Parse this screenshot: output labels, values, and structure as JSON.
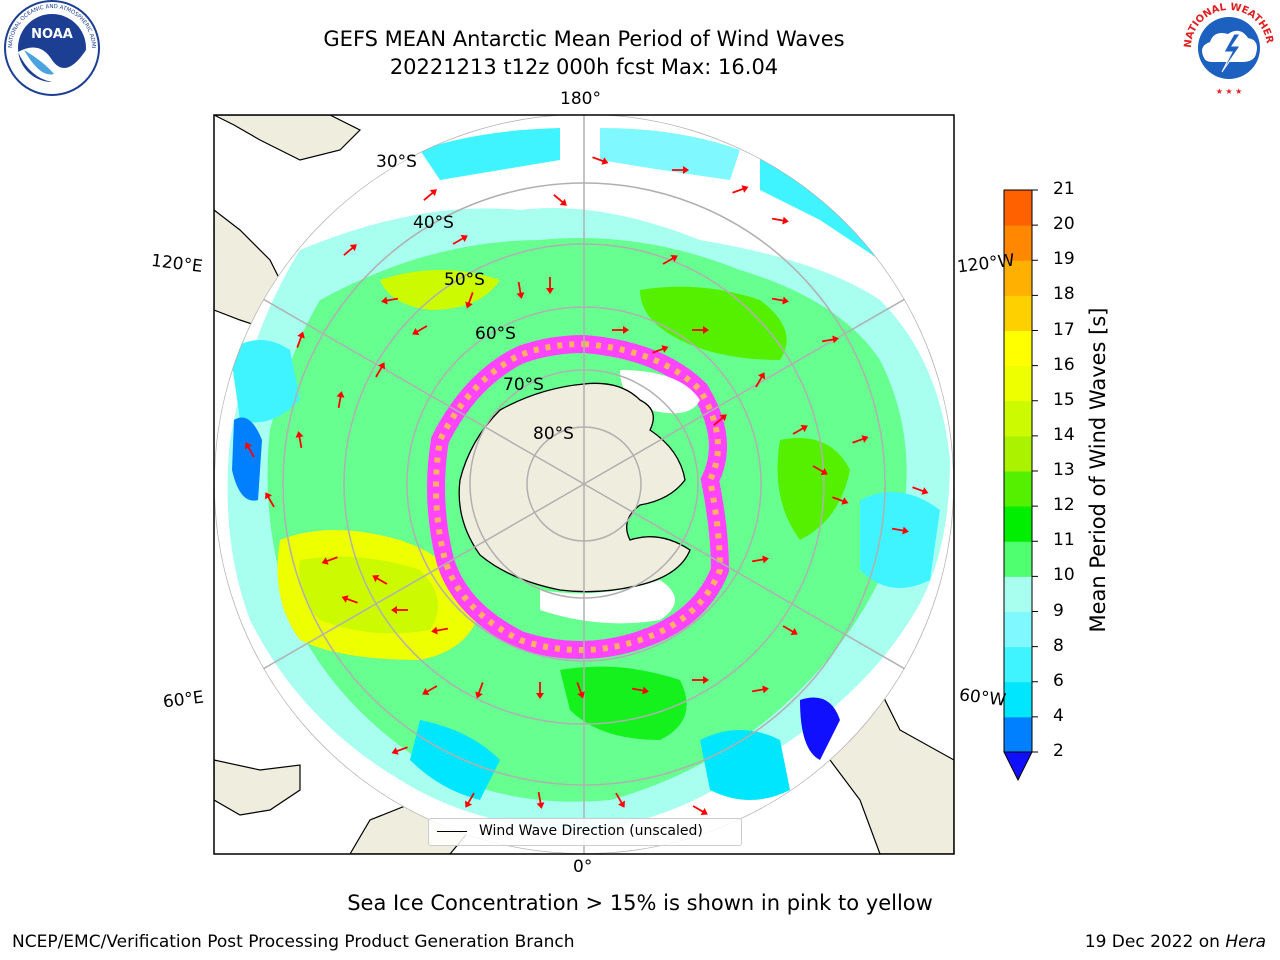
{
  "title": {
    "line1": "GEFS MEAN Antarctic Mean Period of Wind Waves",
    "line2": "20221213 t12z 000h fcst   Max: 16.04"
  },
  "logos": {
    "left": {
      "name": "NOAA",
      "text": "NOAA",
      "ring_text": "NATIONAL OCEANIC AND ATMOSPHERIC ADMINISTRATION · U.S. DEPARTMENT OF COMMERCE"
    },
    "right": {
      "name": "National Weather Service",
      "ring_text": "NATIONAL WEATHER SERVICE"
    }
  },
  "map": {
    "projection": "south-polar-stereographic",
    "longitude_labels": [
      "180°",
      "120°E",
      "120°W",
      "60°E",
      "60°W",
      "0°"
    ],
    "latitude_labels": [
      "30°S",
      "40°S",
      "50°S",
      "60°S",
      "70°S",
      "80°S"
    ],
    "legend": "Wind Wave Direction (unscaled)",
    "arrow_color": "#ff0000",
    "land_color": "#efedde",
    "sea_ice_colors": [
      "#ff44ff",
      "#ffb060",
      "#ffffff"
    ]
  },
  "colorbar": {
    "label": "Mean Period of Wind Waves [s]",
    "ticks": [
      "2",
      "4",
      "6",
      "8",
      "9",
      "10",
      "11",
      "12",
      "13",
      "14",
      "15",
      "16",
      "17",
      "18",
      "19",
      "20",
      "21"
    ],
    "colors": [
      "#0080ff",
      "#00e6ff",
      "#40f4ff",
      "#80f8ff",
      "#a8fff0",
      "#50ff70",
      "#00ee00",
      "#55f000",
      "#aaf200",
      "#ccfa00",
      "#eeff00",
      "#ffff00",
      "#ffd000",
      "#ffb000",
      "#ff8800",
      "#ff6000",
      "#ff3000",
      "#ff0000"
    ],
    "extend": "min",
    "under_color": "#1010ff"
  },
  "note": "Sea Ice Concentration > 15% is shown in pink to yellow",
  "footer": {
    "left": "NCEP/EMC/Verification Post Processing Product Generation Branch",
    "right_prefix": "19 Dec 2022 on ",
    "right_machine": "Hera"
  }
}
